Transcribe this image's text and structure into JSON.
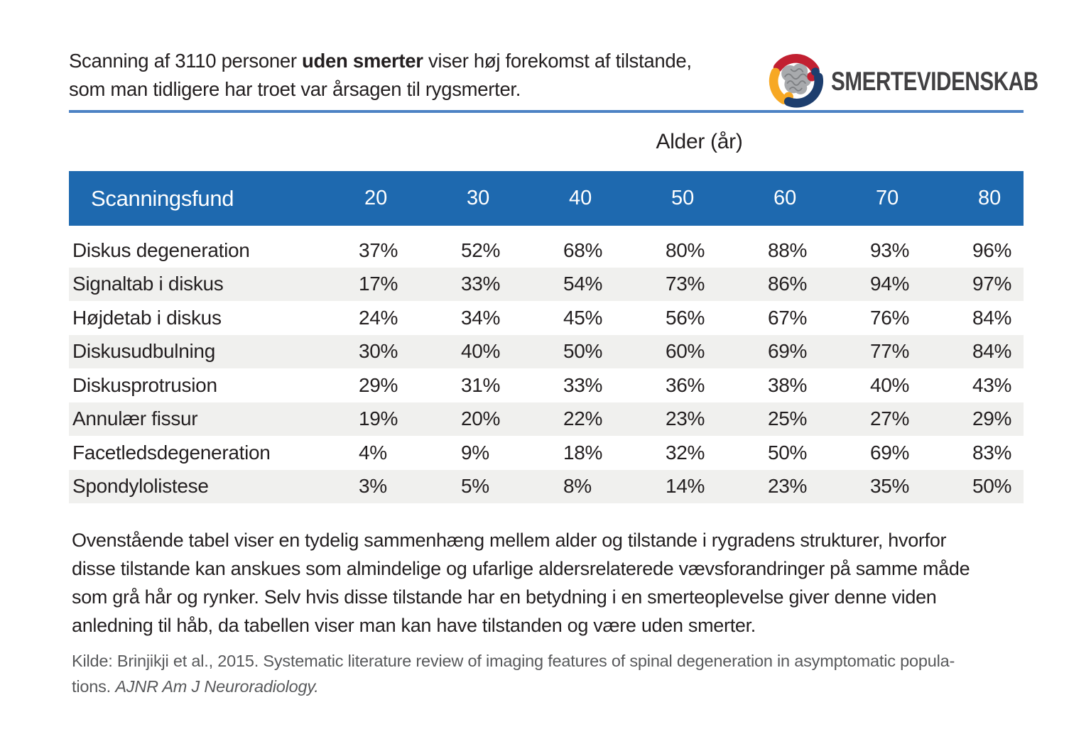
{
  "header": {
    "intro_line1_pre": "Scanning af 3110 personer ",
    "intro_line1_bold": "uden smerter",
    "intro_line1_post": " viser høj forekomst af tilstande,",
    "intro_line2": "som man tidligere har troet var årsagen til rygsmerter."
  },
  "logo": {
    "text": "SMERTEVIDENSKAB",
    "icon": "brain-in-hands"
  },
  "chart_data": {
    "type": "table",
    "group_header": "Alder (år)",
    "first_column_header": "Scanningsfund",
    "age_columns": [
      "20",
      "30",
      "40",
      "50",
      "60",
      "70",
      "80"
    ],
    "rows": [
      {
        "label": "Diskus degeneration",
        "values": [
          "37%",
          "52%",
          "68%",
          "80%",
          "88%",
          "93%",
          "96%"
        ]
      },
      {
        "label": "Signaltab i diskus",
        "values": [
          "17%",
          "33%",
          "54%",
          "73%",
          "86%",
          "94%",
          "97%"
        ]
      },
      {
        "label": "Højdetab i diskus",
        "values": [
          "24%",
          "34%",
          "45%",
          "56%",
          "67%",
          "76%",
          "84%"
        ]
      },
      {
        "label": "Diskusudbulning",
        "values": [
          "30%",
          "40%",
          "50%",
          "60%",
          "69%",
          "77%",
          "84%"
        ]
      },
      {
        "label": "Diskusprotrusion",
        "values": [
          "29%",
          "31%",
          "33%",
          "36%",
          "38%",
          "40%",
          "43%"
        ]
      },
      {
        "label": "Annulær fissur",
        "values": [
          "19%",
          "20%",
          "22%",
          "23%",
          "25%",
          "27%",
          "29%"
        ]
      },
      {
        "label": "Facetledsdegeneration",
        "values": [
          "4%",
          "9%",
          "18%",
          "32%",
          "50%",
          "69%",
          "83%"
        ]
      },
      {
        "label": "Spondylolistese",
        "values": [
          "3%",
          "5%",
          "8%",
          "14%",
          "23%",
          "35%",
          "50%"
        ]
      }
    ]
  },
  "paragraph": {
    "lines": [
      "Ovenstående tabel viser en tydelig sammenhæng mellem alder og tilstande i rygradens strukturer, hvorfor",
      "disse tilstande kan anskues som almindelige og ufarlige aldersrelaterede vævsforandringer på samme måde",
      "som grå hår og rynker. Selv hvis disse tilstande har en betydning i en smerteoplevelse giver denne viden",
      "anledning til håb, da tabellen viser man kan have tilstanden og være uden smerter."
    ]
  },
  "source": {
    "line1": "Kilde: Brinjikji et al., 2015. Systematic literature review of imaging features of spinal degeneration in asymptomatic popula-",
    "line2_pre": "tions. ",
    "line2_italic": "AJNR Am J Neuroradiology."
  },
  "colors": {
    "header_blue": "#1e69af",
    "divider_blue": "#4d82c4",
    "stripe_gray": "#f0f0ee",
    "text_dark": "#231f20",
    "text_gray": "#58595b",
    "logo_text": "#414042",
    "logo_red": "#c22031",
    "logo_yellow": "#f7a823",
    "logo_navy": "#1d3e6e",
    "brain_gray": "#a8aaad"
  }
}
